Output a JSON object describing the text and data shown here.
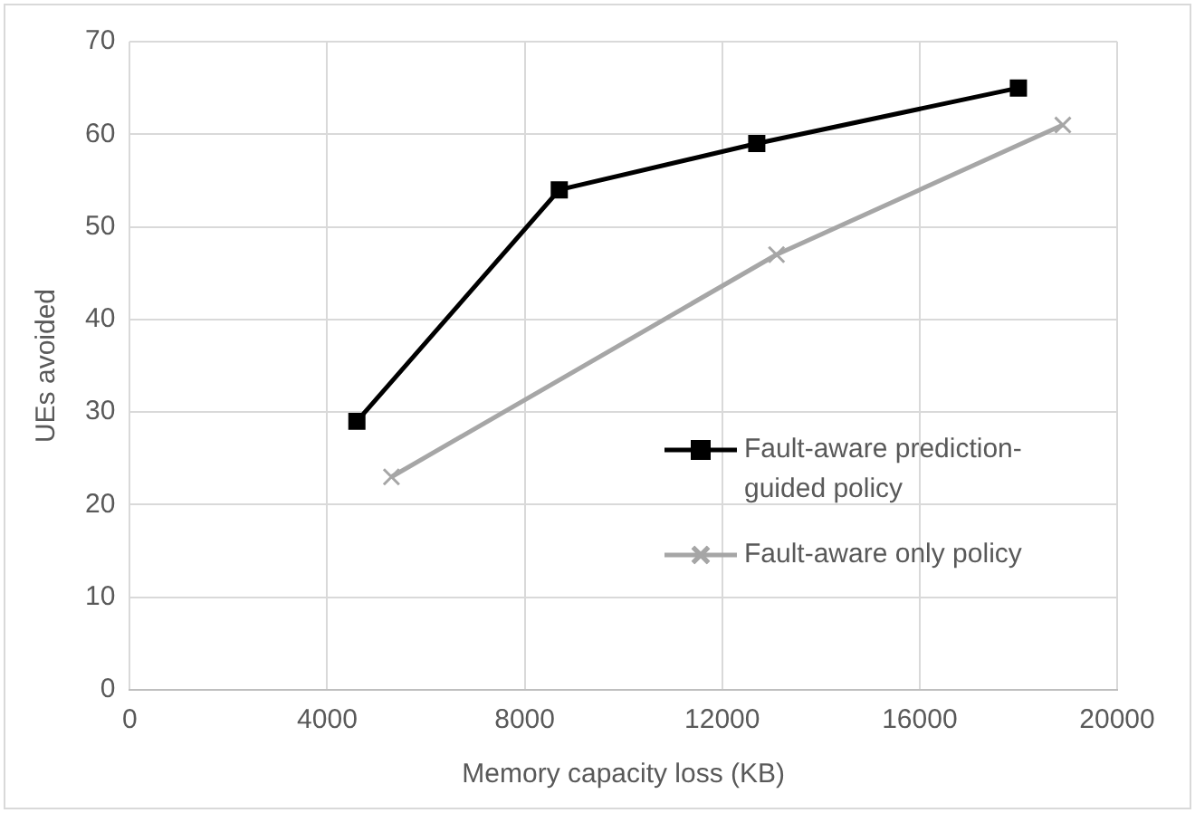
{
  "chart_data": {
    "type": "line",
    "xlabel": "Memory capacity loss (KB)",
    "ylabel": "UEs avoided",
    "xlim": [
      0,
      20000
    ],
    "xticks": [
      0,
      4000,
      8000,
      12000,
      16000,
      20000
    ],
    "ylim": [
      0,
      70
    ],
    "yticks": [
      0,
      10,
      20,
      30,
      40,
      50,
      60,
      70
    ],
    "grid": true,
    "legend": "right",
    "series": [
      {
        "name": "Fault-aware prediction-guided policy",
        "color": "#000000",
        "marker": "square",
        "x": [
          4600,
          8700,
          12700,
          18000
        ],
        "values": [
          29,
          54,
          59,
          65
        ]
      },
      {
        "name": "Fault-aware only policy",
        "color": "#a6a6a6",
        "marker": "cross",
        "x": [
          5300,
          13100,
          18900
        ],
        "values": [
          23,
          47,
          61
        ]
      }
    ]
  }
}
